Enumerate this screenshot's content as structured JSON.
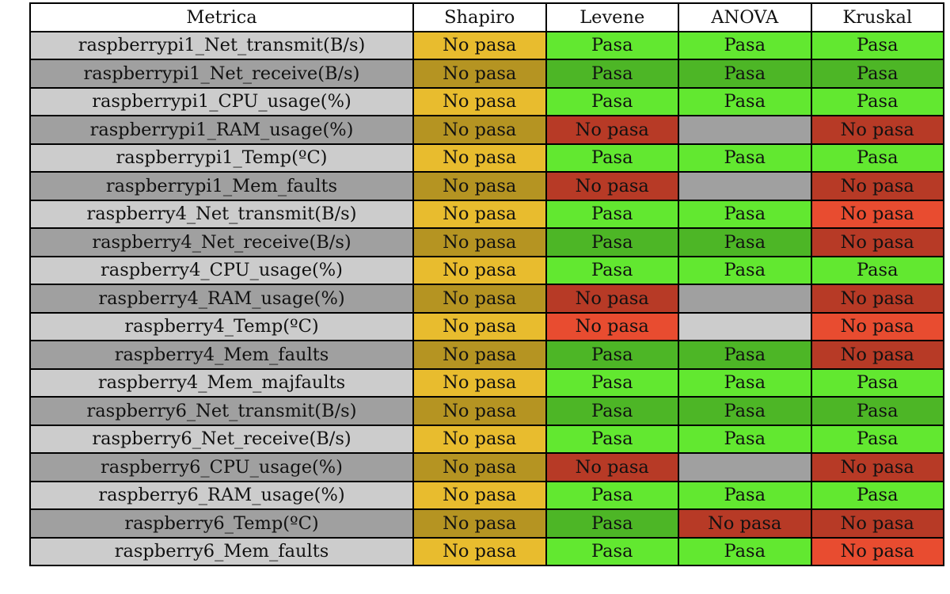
{
  "chart_data": {
    "type": "table",
    "columns": [
      "Metrica",
      "Shapiro",
      "Levene",
      "ANOVA",
      "Kruskal"
    ],
    "rows": [
      {
        "metric": "raspberrypi1_Net_transmit(B/s)",
        "shapiro": "No pasa",
        "levene": "Pasa",
        "anova": "Pasa",
        "kruskal": "Pasa"
      },
      {
        "metric": "raspberrypi1_Net_receive(B/s)",
        "shapiro": "No pasa",
        "levene": "Pasa",
        "anova": "Pasa",
        "kruskal": "Pasa"
      },
      {
        "metric": "raspberrypi1_CPU_usage(%)",
        "shapiro": "No pasa",
        "levene": "Pasa",
        "anova": "Pasa",
        "kruskal": "Pasa"
      },
      {
        "metric": "raspberrypi1_RAM_usage(%)",
        "shapiro": "No pasa",
        "levene": "No pasa",
        "anova": "",
        "kruskal": "No pasa"
      },
      {
        "metric": "raspberrypi1_Temp(ºC)",
        "shapiro": "No pasa",
        "levene": "Pasa",
        "anova": "Pasa",
        "kruskal": "Pasa"
      },
      {
        "metric": "raspberrypi1_Mem_faults",
        "shapiro": "No pasa",
        "levene": "No pasa",
        "anova": "",
        "kruskal": "No pasa"
      },
      {
        "metric": "raspberry4_Net_transmit(B/s)",
        "shapiro": "No pasa",
        "levene": "Pasa",
        "anova": "Pasa",
        "kruskal": "No pasa"
      },
      {
        "metric": "raspberry4_Net_receive(B/s)",
        "shapiro": "No pasa",
        "levene": "Pasa",
        "anova": "Pasa",
        "kruskal": "No pasa"
      },
      {
        "metric": "raspberry4_CPU_usage(%)",
        "shapiro": "No pasa",
        "levene": "Pasa",
        "anova": "Pasa",
        "kruskal": "Pasa"
      },
      {
        "metric": "raspberry4_RAM_usage(%)",
        "shapiro": "No pasa",
        "levene": "No pasa",
        "anova": "",
        "kruskal": "No pasa"
      },
      {
        "metric": "raspberry4_Temp(ºC)",
        "shapiro": "No pasa",
        "levene": "No pasa",
        "anova": "",
        "kruskal": "No pasa"
      },
      {
        "metric": "raspberry4_Mem_faults",
        "shapiro": "No pasa",
        "levene": "Pasa",
        "anova": "Pasa",
        "kruskal": "No pasa"
      },
      {
        "metric": "raspberry4_Mem_majfaults",
        "shapiro": "No pasa",
        "levene": "Pasa",
        "anova": "Pasa",
        "kruskal": "Pasa"
      },
      {
        "metric": "raspberry6_Net_transmit(B/s)",
        "shapiro": "No pasa",
        "levene": "Pasa",
        "anova": "Pasa",
        "kruskal": "Pasa"
      },
      {
        "metric": "raspberry6_Net_receive(B/s)",
        "shapiro": "No pasa",
        "levene": "Pasa",
        "anova": "Pasa",
        "kruskal": "Pasa"
      },
      {
        "metric": "raspberry6_CPU_usage(%)",
        "shapiro": "No pasa",
        "levene": "No pasa",
        "anova": "",
        "kruskal": "No pasa"
      },
      {
        "metric": "raspberry6_RAM_usage(%)",
        "shapiro": "No pasa",
        "levene": "Pasa",
        "anova": "Pasa",
        "kruskal": "Pasa"
      },
      {
        "metric": "raspberry6_Temp(ºC)",
        "shapiro": "No pasa",
        "levene": "Pasa",
        "anova": "No pasa",
        "kruskal": "No pasa"
      },
      {
        "metric": "raspberry6_Mem_faults",
        "shapiro": "No pasa",
        "levene": "Pasa",
        "anova": "Pasa",
        "kruskal": "No pasa"
      }
    ]
  },
  "colors": {
    "header_bg": "#ffffff",
    "metric_light": "#cccccc",
    "metric_dark": "#a0a0a0",
    "shapiro_light": "#e8bc2e",
    "shapiro_dark": "#b59422",
    "pass_light": "#62e830",
    "pass_dark": "#4db626",
    "fail_light": "#e84c30",
    "fail_dark": "#b73a26",
    "empty_light": "#cccccc",
    "empty_dark": "#a0a0a0"
  }
}
